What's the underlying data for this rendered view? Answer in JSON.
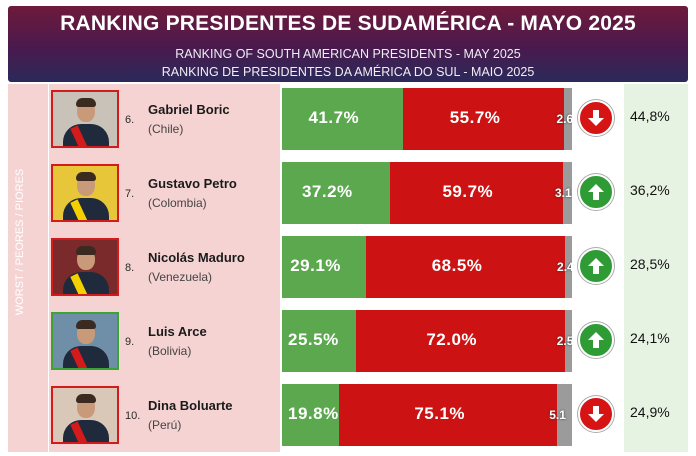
{
  "header": {
    "title": "RANKING PRESIDENTES DE SUDAMÉRICA - MAYO 2025",
    "subtitle_en": "RANKING OF SOUTH AMERICAN PRESIDENTS -  MAY 2025",
    "subtitle_pt": "RANKING DE PRESIDENTES DA AMÉRICA DO SUL - MAIO 2025"
  },
  "side_label": "WORST / PEORES / PIORES",
  "colors": {
    "approve": "#5ba84e",
    "disapprove": "#cc1212",
    "no_response": "#9b9b9b",
    "trend_up": "#2e9b35",
    "trend_down": "#d61414"
  },
  "chart_data": {
    "type": "bar",
    "stacked": true,
    "orientation": "horizontal",
    "categories": [
      "Gabriel Boric",
      "Gustavo Petro",
      "Nicolás Maduro",
      "Luis Arce",
      "Dina Boluarte"
    ],
    "series": [
      {
        "values": [
          41.7,
          37.2,
          29.1,
          25.5,
          19.8
        ],
        "labels": [
          "41.7%",
          "37.2%",
          "29.1%",
          "25.5%",
          "19.8%"
        ]
      },
      {
        "values": [
          55.7,
          59.7,
          68.5,
          72.0,
          75.1
        ],
        "labels": [
          "55.7%",
          "59.7%",
          "68.5%",
          "72.0%",
          "75.1%"
        ]
      },
      {
        "values": [
          2.6,
          3.1,
          2.4,
          2.5,
          5.1
        ],
        "labels": [
          "2.6",
          "3.1",
          "2.4",
          "2.5",
          "5.1"
        ]
      }
    ]
  },
  "rows": [
    {
      "rank": "6.",
      "name": "Gabriel Boric",
      "country": "(Chile)",
      "trend": "down",
      "trend_icon": "arrow-down-icon",
      "previous": "44,8%",
      "photo_border": "red",
      "photo_bg": "#c9c2b8",
      "sash": "#d41b1b"
    },
    {
      "rank": "7.",
      "name": "Gustavo Petro",
      "country": "(Colombia)",
      "trend": "up",
      "trend_icon": "arrow-up-icon",
      "previous": "36,2%",
      "photo_border": "red",
      "photo_bg": "#e8c63a",
      "sash": "#f5d000"
    },
    {
      "rank": "8.",
      "name": "Nicolás Maduro",
      "country": "(Venezuela)",
      "trend": "up",
      "trend_icon": "arrow-up-icon",
      "previous": "28,5%",
      "photo_border": "red",
      "photo_bg": "#7a2a2a",
      "sash": "#f5d000"
    },
    {
      "rank": "9.",
      "name": "Luis Arce",
      "country": "(Bolivia)",
      "trend": "up",
      "trend_icon": "arrow-up-icon",
      "previous": "24,1%",
      "photo_border": "green",
      "photo_bg": "#6f8fa8",
      "sash": "#d41b1b"
    },
    {
      "rank": "10.",
      "name": "Dina Boluarte",
      "country": "(Perú)",
      "trend": "down",
      "trend_icon": "arrow-down-icon",
      "previous": "24,9%",
      "photo_border": "red",
      "photo_bg": "#d9c7b8",
      "sash": "#d41b1b"
    }
  ]
}
